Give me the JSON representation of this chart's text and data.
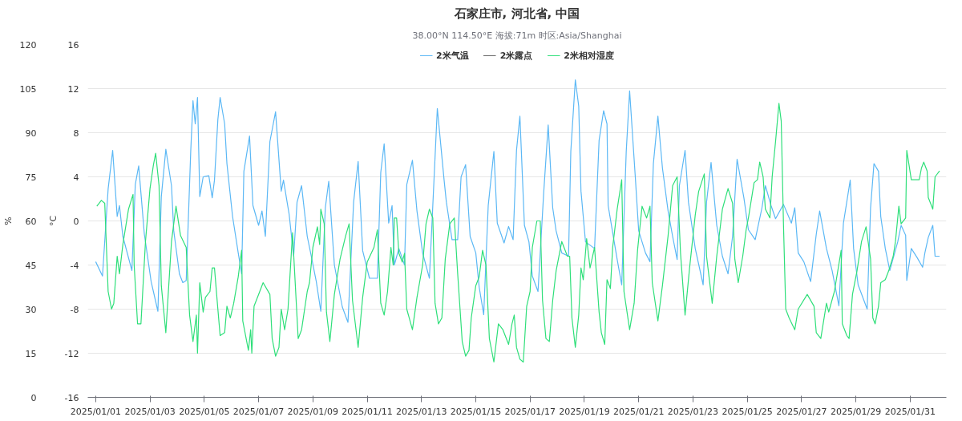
{
  "chart_data": {
    "type": "line",
    "title": "石家庄市, 河北省, 中国",
    "subtitle": "38.00°N 114.50°E 海拔:71m 时区:Asia/Shanghai",
    "ylabel": "°C",
    "y2label": "%",
    "xlim": [
      "2024-12-31T17:00",
      "2025-02-01T08:00"
    ],
    "xticks": [
      {
        "value": "2025-01-01",
        "label": "2025/01/01"
      },
      {
        "value": "2025-01-03",
        "label": "2025/01/03"
      },
      {
        "value": "2025-01-05",
        "label": "2025/01/05"
      },
      {
        "value": "2025-01-07",
        "label": "2025/01/07"
      },
      {
        "value": "2025-01-09",
        "label": "2025/01/09"
      },
      {
        "value": "2025-01-11",
        "label": "2025/01/11"
      },
      {
        "value": "2025-01-13",
        "label": "2025/01/13"
      },
      {
        "value": "2025-01-15",
        "label": "2025/01/15"
      },
      {
        "value": "2025-01-17",
        "label": "2025/01/17"
      },
      {
        "value": "2025-01-19",
        "label": "2025/01/19"
      },
      {
        "value": "2025-01-21",
        "label": "2025/01/21"
      },
      {
        "value": "2025-01-23",
        "label": "2025/01/23"
      },
      {
        "value": "2025-01-25",
        "label": "2025/01/25"
      },
      {
        "value": "2025-01-27",
        "label": "2025/01/27"
      },
      {
        "value": "2025-01-29",
        "label": "2025/01/29"
      },
      {
        "value": "2025-01-31",
        "label": "2025/01/31"
      }
    ],
    "ylim": [
      -16,
      16
    ],
    "yticks": [
      -16,
      -12,
      -8,
      -4,
      0,
      4,
      8,
      12,
      16
    ],
    "y2lim": [
      0,
      120
    ],
    "y2ticks": [
      0,
      15,
      30,
      45,
      60,
      75,
      90,
      105,
      120
    ],
    "grid": "y",
    "legend": "top",
    "series": [
      {
        "name": "2米气温",
        "color": "#5cb8f5",
        "x": [
          "2025-01-01T00:00",
          "2025-01-01T06:00",
          "2025-01-01T11:00",
          "2025-01-01T15:00",
          "2025-01-01T19:00",
          "2025-01-01T21:00",
          "2025-01-02T00:00",
          "2025-01-02T08:00",
          "2025-01-02T11:00",
          "2025-01-02T14:00",
          "2025-01-02T19:00",
          "2025-01-03T01:00",
          "2025-01-03T07:00",
          "2025-01-03T10:00",
          "2025-01-03T14:00",
          "2025-01-03T19:00",
          "2025-01-03T21:00",
          "2025-01-04T02:00",
          "2025-01-04T05:00",
          "2025-01-04T08:00",
          "2025-01-04T12:00",
          "2025-01-04T14:00",
          "2025-01-04T16:00",
          "2025-01-04T18:00",
          "2025-01-04T20:00",
          "2025-01-04T23:00",
          "2025-01-05T04:00",
          "2025-01-05T07:00",
          "2025-01-05T09:00",
          "2025-01-05T12:00",
          "2025-01-05T14:00",
          "2025-01-05T18:00",
          "2025-01-05T20:00",
          "2025-01-06T01:00",
          "2025-01-06T06:00",
          "2025-01-06T09:00",
          "2025-01-06T11:00",
          "2025-01-06T16:00",
          "2025-01-06T19:00",
          "2025-01-07T00:00",
          "2025-01-07T03:00",
          "2025-01-07T06:00",
          "2025-01-07T10:00",
          "2025-01-07T15:00",
          "2025-01-07T20:00",
          "2025-01-07T22:00",
          "2025-01-08T03:00",
          "2025-01-08T07:00",
          "2025-01-08T10:00",
          "2025-01-08T14:00",
          "2025-01-08T19:00",
          "2025-01-08T22:00",
          "2025-01-09T03:00",
          "2025-01-09T07:00",
          "2025-01-09T11:00",
          "2025-01-09T14:00",
          "2025-01-09T19:00",
          "2025-01-10T02:00",
          "2025-01-10T07:00",
          "2025-01-10T12:00",
          "2025-01-10T16:00",
          "2025-01-10T20:00",
          "2025-01-11T02:00",
          "2025-01-11T09:00",
          "2025-01-11T12:00",
          "2025-01-11T15:00",
          "2025-01-11T19:00",
          "2025-01-11T22:00",
          "2025-01-12T00:00",
          "2025-01-12T04:00",
          "2025-01-12T09:00",
          "2025-01-12T11:00",
          "2025-01-12T16:00",
          "2025-01-12T20:00",
          "2025-01-13T01:00",
          "2025-01-13T07:00",
          "2025-01-13T12:00",
          "2025-01-13T14:00",
          "2025-01-13T20:00",
          "2025-01-13T22:00",
          "2025-01-14T03:00",
          "2025-01-14T08:00",
          "2025-01-14T11:00",
          "2025-01-14T15:00",
          "2025-01-14T19:00",
          "2025-01-15T00:00",
          "2025-01-15T03:00",
          "2025-01-15T07:00",
          "2025-01-15T11:00",
          "2025-01-15T16:00",
          "2025-01-15T19:00",
          "2025-01-16T01:00",
          "2025-01-16T05:00",
          "2025-01-16T09:00",
          "2025-01-16T12:00",
          "2025-01-16T15:00",
          "2025-01-16T19:00",
          "2025-01-16T23:00",
          "2025-01-17T02:00",
          "2025-01-17T07:00",
          "2025-01-17T12:00",
          "2025-01-17T16:00",
          "2025-01-17T20:00",
          "2025-01-17T23:00",
          "2025-01-18T04:00",
          "2025-01-18T10:00",
          "2025-01-18T12:00",
          "2025-01-18T16:00",
          "2025-01-18T19:00",
          "2025-01-18T21:00",
          "2025-01-19T01:00",
          "2025-01-19T09:00",
          "2025-01-19T13:00",
          "2025-01-19T17:00",
          "2025-01-19T20:00",
          "2025-01-19T21:00",
          "2025-01-20T05:00",
          "2025-01-20T09:00",
          "2025-01-20T13:00",
          "2025-01-20T16:00",
          "2025-01-20T21:00",
          "2025-01-21T00:00",
          "2025-01-21T06:00",
          "2025-01-21T10:00",
          "2025-01-21T13:00",
          "2025-01-21T17:00",
          "2025-01-21T21:00",
          "2025-01-22T02:00",
          "2025-01-22T06:00",
          "2025-01-22T10:00",
          "2025-01-22T12:00",
          "2025-01-22T17:00",
          "2025-01-22T20:00",
          "2025-01-23T02:00",
          "2025-01-23T09:00",
          "2025-01-23T12:00",
          "2025-01-23T16:00",
          "2025-01-23T21:00",
          "2025-01-24T02:00",
          "2025-01-24T07:00",
          "2025-01-24T11:00",
          "2025-01-24T15:00",
          "2025-01-24T21:00",
          "2025-01-25T01:00",
          "2025-01-25T07:00",
          "2025-01-25T13:00",
          "2025-01-25T16:00",
          "2025-01-25T21:00",
          "2025-01-26T01:00",
          "2025-01-26T08:00",
          "2025-01-26T15:00",
          "2025-01-26T18:00",
          "2025-01-26T21:00",
          "2025-01-27T02:00",
          "2025-01-27T08:00",
          "2025-01-27T13:00",
          "2025-01-27T16:00",
          "2025-01-27T22:00",
          "2025-01-28T03:00",
          "2025-01-28T09:00",
          "2025-01-28T13:00",
          "2025-01-28T19:00",
          "2025-01-28T22:00",
          "2025-01-29T02:00",
          "2025-01-29T10:00",
          "2025-01-29T13:00",
          "2025-01-29T16:00",
          "2025-01-29T20:00",
          "2025-01-29T22:00",
          "2025-01-30T02:00",
          "2025-01-30T06:00",
          "2025-01-30T13:00",
          "2025-01-30T16:00",
          "2025-01-30T20:00",
          "2025-01-30T21:00",
          "2025-01-31T01:00",
          "2025-01-31T06:00",
          "2025-01-31T11:00",
          "2025-01-31T13:00",
          "2025-01-31T16:00",
          "2025-01-31T20:00",
          "2025-01-31T22:00",
          "2025-02-01T02:00"
        ],
        "values": [
          -3.7,
          -5.0,
          2.9,
          6.4,
          0.4,
          1.4,
          -1.4,
          -4.5,
          3.3,
          5.0,
          -1.2,
          -5.5,
          -8.2,
          2.2,
          6.5,
          3.2,
          -0.9,
          -4.8,
          -5.6,
          -5.4,
          6.3,
          10.9,
          8.8,
          11.2,
          2.2,
          4.0,
          4.1,
          2.1,
          3.7,
          9.2,
          11.2,
          8.8,
          5.2,
          0.4,
          -2.9,
          -4.8,
          4.5,
          7.7,
          1.4,
          -0.4,
          0.9,
          -1.4,
          7.2,
          9.9,
          2.7,
          3.7,
          0.6,
          -3.2,
          1.7,
          3.2,
          -1.4,
          -2.9,
          -5.5,
          -8.2,
          1.2,
          3.6,
          -4.0,
          -7.8,
          -9.2,
          1.7,
          5.4,
          -2.7,
          -5.2,
          -5.2,
          4.4,
          7.0,
          -0.2,
          1.4,
          -4.0,
          -2.5,
          -4.0,
          3.3,
          5.5,
          0.9,
          -2.9,
          -5.2,
          5.8,
          10.2,
          3.7,
          1.7,
          -1.7,
          -1.7,
          4.0,
          5.1,
          -1.4,
          -2.9,
          -6.0,
          -8.5,
          1.4,
          6.3,
          -0.2,
          -2.0,
          -0.5,
          -1.7,
          6.4,
          9.5,
          -0.4,
          -1.9,
          -5.0,
          -6.4,
          2.5,
          8.7,
          1.2,
          -0.9,
          -2.9,
          -3.2,
          6.3,
          12.8,
          10.4,
          2.7,
          -1.9,
          -2.5,
          7.3,
          10.0,
          8.8,
          1.4,
          -3.5,
          -5.8,
          6.3,
          11.8,
          4.0,
          -0.9,
          -2.9,
          -3.7,
          5.2,
          9.5,
          4.8,
          0.9,
          -1.4,
          -3.5,
          3.2,
          6.4,
          1.7,
          -2.5,
          -5.8,
          1.7,
          5.3,
          -0.4,
          -3.2,
          -4.8,
          -1.4,
          5.6,
          2.1,
          -0.8,
          -1.7,
          1.2,
          3.2,
          1.4,
          0.2,
          1.5,
          -0.2,
          1.2,
          -2.9,
          -3.7,
          -5.5,
          -1.2,
          0.9,
          -2.5,
          -4.5,
          -7.7,
          -0.2,
          3.7,
          -2.5,
          -5.8,
          -8.0,
          1.2,
          5.2,
          4.5,
          0.4,
          -2.5,
          -4.5,
          -1.9,
          -0.4,
          -1.3,
          -5.4,
          -2.5,
          -3.3,
          -4.2,
          -2.9,
          -1.5,
          -0.4,
          -3.2,
          -3.2
        ]
      },
      {
        "name": "2米露点",
        "color": "#666666"
      },
      {
        "name": "2米相对湿度",
        "color": "#2fdf7a",
        "axis": "y2",
        "x": [
          "2025-01-01T01:00",
          "2025-01-01T05:00",
          "2025-01-01T08:00",
          "2025-01-01T11:00",
          "2025-01-01T14:00",
          "2025-01-01T16:00",
          "2025-01-01T19:00",
          "2025-01-01T21:00",
          "2025-01-02T00:00",
          "2025-01-02T05:00",
          "2025-01-02T09:00",
          "2025-01-02T10:00",
          "2025-01-02T13:00",
          "2025-01-02T16:00",
          "2025-01-02T20:00",
          "2025-01-03T00:00",
          "2025-01-03T03:00",
          "2025-01-03T05:00",
          "2025-01-03T08:00",
          "2025-01-03T10:00",
          "2025-01-03T14:00",
          "2025-01-03T19:00",
          "2025-01-03T23:00",
          "2025-01-04T03:00",
          "2025-01-04T08:00",
          "2025-01-04T11:00",
          "2025-01-04T14:00",
          "2025-01-04T17:00",
          "2025-01-04T18:00",
          "2025-01-04T20:00",
          "2025-01-04T23:00",
          "2025-01-05T01:00",
          "2025-01-05T05:00",
          "2025-01-05T07:00",
          "2025-01-05T09:00",
          "2025-01-05T12:00",
          "2025-01-05T14:00",
          "2025-01-05T18:00",
          "2025-01-05T20:00",
          "2025-01-05T23:00",
          "2025-01-06T02:00",
          "2025-01-06T06:00",
          "2025-01-06T09:00",
          "2025-01-06T10:00",
          "2025-01-06T15:00",
          "2025-01-06T17:00",
          "2025-01-06T18:00",
          "2025-01-06T20:00",
          "2025-01-07T00:00",
          "2025-01-07T04:00",
          "2025-01-07T10:00",
          "2025-01-07T12:00",
          "2025-01-07T15:00",
          "2025-01-07T18:00",
          "2025-01-07T20:00",
          "2025-01-07T23:00",
          "2025-01-08T02:00",
          "2025-01-08T06:00",
          "2025-01-08T11:00",
          "2025-01-08T14:00",
          "2025-01-08T19:00",
          "2025-01-08T21:00",
          "2025-01-09T00:00",
          "2025-01-09T04:00",
          "2025-01-09T06:00",
          "2025-01-09T07:00",
          "2025-01-09T10:00",
          "2025-01-09T12:00",
          "2025-01-09T15:00",
          "2025-01-09T19:00",
          "2025-01-10T00:00",
          "2025-01-10T05:00",
          "2025-01-10T08:00",
          "2025-01-10T11:00",
          "2025-01-10T16:00",
          "2025-01-10T20:00",
          "2025-01-11T00:00",
          "2025-01-11T06:00",
          "2025-01-11T09:00",
          "2025-01-11T12:00",
          "2025-01-11T15:00",
          "2025-01-11T18:00",
          "2025-01-11T21:00",
          "2025-01-11T23:00",
          "2025-01-12T00:00",
          "2025-01-12T02:00",
          "2025-01-12T04:00",
          "2025-01-12T07:00",
          "2025-01-12T09:00",
          "2025-01-12T11:00",
          "2025-01-12T16:00",
          "2025-01-12T20:00",
          "2025-01-13T01:00",
          "2025-01-13T04:00",
          "2025-01-13T07:00",
          "2025-01-13T10:00",
          "2025-01-13T12:00",
          "2025-01-13T15:00",
          "2025-01-13T18:00",
          "2025-01-13T21:00",
          "2025-01-14T01:00",
          "2025-01-14T05:00",
          "2025-01-14T08:00",
          "2025-01-14T12:00",
          "2025-01-14T15:00",
          "2025-01-14T18:00",
          "2025-01-14T20:00",
          "2025-01-15T00:00",
          "2025-01-15T03:00",
          "2025-01-15T06:00",
          "2025-01-15T09:00",
          "2025-01-15T12:00",
          "2025-01-15T16:00",
          "2025-01-15T20:00",
          "2025-01-16T00:00",
          "2025-01-16T05:00",
          "2025-01-16T08:00",
          "2025-01-16T10:00",
          "2025-01-16T12:00",
          "2025-01-16T15:00",
          "2025-01-16T18:00",
          "2025-01-16T21:00",
          "2025-01-17T00:00",
          "2025-01-17T02:00",
          "2025-01-17T06:00",
          "2025-01-17T09:00",
          "2025-01-17T11:00",
          "2025-01-17T14:00",
          "2025-01-17T17:00",
          "2025-01-17T20:00",
          "2025-01-17T23:00",
          "2025-01-18T04:00",
          "2025-01-18T09:00",
          "2025-01-18T11:00",
          "2025-01-18T13:00",
          "2025-01-18T16:00",
          "2025-01-18T19:00",
          "2025-01-18T21:00",
          "2025-01-18T23:00",
          "2025-01-19T02:00",
          "2025-01-19T05:00",
          "2025-01-19T09:00",
          "2025-01-19T13:00",
          "2025-01-19T15:00",
          "2025-01-19T18:00",
          "2025-01-19T20:00",
          "2025-01-19T23:00",
          "2025-01-20T01:00",
          "2025-01-20T05:00",
          "2025-01-20T09:00",
          "2025-01-20T11:00",
          "2025-01-20T16:00",
          "2025-01-20T20:00",
          "2025-01-20T23:00",
          "2025-01-21T03:00",
          "2025-01-21T07:00",
          "2025-01-21T10:00",
          "2025-01-21T12:00",
          "2025-01-21T17:00",
          "2025-01-21T21:00",
          "2025-01-22T02:00",
          "2025-01-22T06:00",
          "2025-01-22T10:00",
          "2025-01-22T13:00",
          "2025-01-22T17:00",
          "2025-01-22T21:00",
          "2025-01-23T02:00",
          "2025-01-23T05:00",
          "2025-01-23T10:00",
          "2025-01-23T12:00",
          "2025-01-23T17:00",
          "2025-01-23T21:00",
          "2025-01-24T02:00",
          "2025-01-24T07:00",
          "2025-01-24T11:00",
          "2025-01-24T13:00",
          "2025-01-24T16:00",
          "2025-01-24T20:00",
          "2025-01-24T23:00",
          "2025-01-25T01:00",
          "2025-01-25T06:00",
          "2025-01-25T09:00",
          "2025-01-25T11:00",
          "2025-01-25T14:00",
          "2025-01-25T16:00",
          "2025-01-25T20:00",
          "2025-01-25T22:00",
          "2025-01-26T01:00",
          "2025-01-26T04:00",
          "2025-01-26T06:00",
          "2025-01-26T08:00",
          "2025-01-26T10:00",
          "2025-01-26T13:00",
          "2025-01-26T18:00",
          "2025-01-26T21:00",
          "2025-01-27T05:00",
          "2025-01-27T11:00",
          "2025-01-27T13:00",
          "2025-01-27T17:00",
          "2025-01-27T22:00",
          "2025-01-28T00:00",
          "2025-01-28T05:00",
          "2025-01-28T11:00",
          "2025-01-28T12:00",
          "2025-01-28T16:00",
          "2025-01-28T18:00",
          "2025-01-28T21:00",
          "2025-01-29T01:00",
          "2025-01-29T05:00",
          "2025-01-29T09:00",
          "2025-01-29T13:00",
          "2025-01-29T15:00",
          "2025-01-29T17:00",
          "2025-01-29T20:00",
          "2025-01-29T22:00",
          "2025-01-30T02:00",
          "2025-01-30T05:00",
          "2025-01-30T09:00",
          "2025-01-30T11:00",
          "2025-01-30T14:00",
          "2025-01-30T16:00",
          "2025-01-30T20:00",
          "2025-01-30T21:00",
          "2025-01-31T01:00",
          "2025-01-31T08:00",
          "2025-01-31T10:00",
          "2025-01-31T12:00",
          "2025-01-31T15:00",
          "2025-01-31T16:00",
          "2025-01-31T20:00",
          "2025-01-31T22:00",
          "2025-02-01T02:00"
        ],
        "values": [
          65,
          67,
          66,
          36,
          30,
          32,
          48,
          42,
          52,
          64,
          69,
          45,
          25,
          25,
          53,
          71,
          79,
          83,
          72,
          38,
          22,
          53,
          65,
          55,
          51,
          28,
          19,
          28,
          15,
          39,
          29,
          34,
          36,
          44,
          44,
          30,
          21,
          22,
          31,
          27,
          32,
          41,
          50,
          26,
          16,
          23,
          15,
          31,
          35,
          39,
          35,
          20,
          14,
          17,
          30,
          23,
          30,
          56,
          20,
          23,
          36,
          39,
          51,
          58,
          52,
          64,
          59,
          29,
          19,
          35,
          47,
          55,
          59,
          33,
          17,
          34,
          46,
          51,
          57,
          32,
          28,
          36,
          51,
          45,
          61,
          61,
          49,
          46,
          49,
          30,
          23,
          34,
          45,
          59,
          64,
          61,
          32,
          25,
          27,
          47,
          59,
          61,
          42,
          19,
          14,
          16,
          27,
          38,
          41,
          50,
          45,
          20,
          12,
          25,
          23,
          18,
          25,
          28,
          17,
          13,
          12,
          31,
          36,
          51,
          60,
          60,
          33,
          20,
          19,
          33,
          43,
          53,
          48,
          48,
          27,
          17,
          28,
          44,
          40,
          54,
          44,
          51,
          29,
          22,
          18,
          40,
          37,
          51,
          64,
          74,
          36,
          23,
          32,
          50,
          65,
          61,
          65,
          39,
          26,
          38,
          55,
          72,
          75,
          49,
          28,
          44,
          62,
          70,
          76,
          48,
          32,
          48,
          64,
          71,
          66,
          47,
          39,
          48,
          57,
          61,
          73,
          74,
          80,
          75,
          64,
          61,
          75,
          87,
          100,
          94,
          59,
          30,
          27,
          23,
          30,
          35,
          31,
          22,
          20,
          32,
          29,
          36,
          50,
          25,
          21,
          20,
          35,
          43,
          53,
          58,
          47,
          27,
          25,
          31,
          39,
          40,
          43,
          48,
          53,
          65,
          59,
          61,
          84,
          74,
          74,
          78,
          80,
          77,
          68,
          64,
          75,
          77
        ]
      }
    ]
  }
}
